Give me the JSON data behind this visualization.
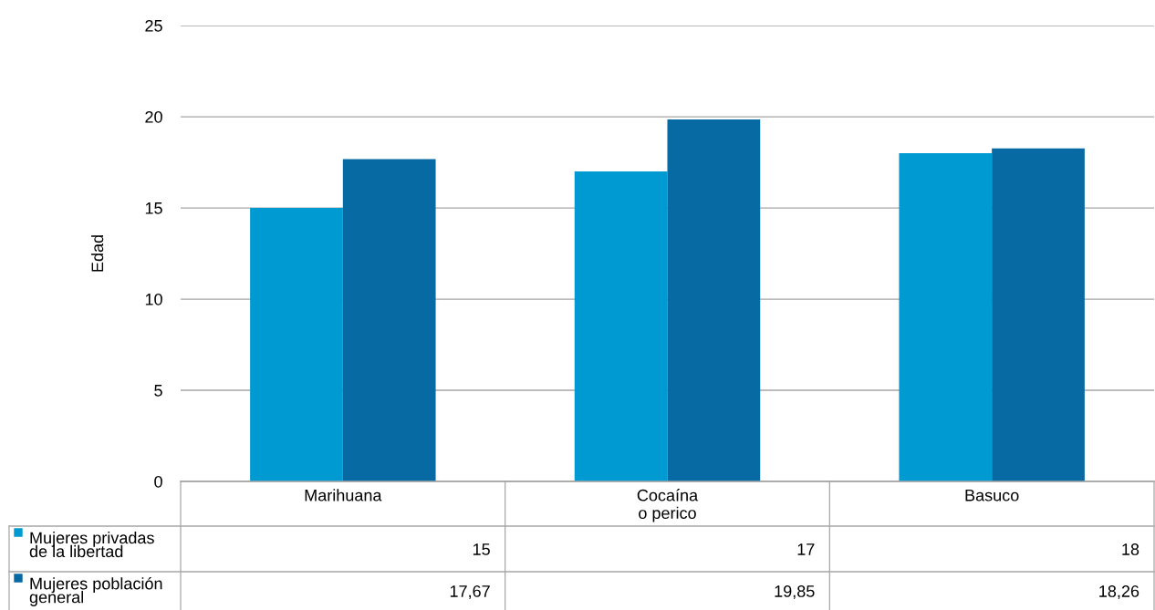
{
  "chart_data": {
    "type": "bar",
    "ylabel": "Edad",
    "categories": [
      "Marihuana",
      "Cocaína\no perico",
      "Basuco"
    ],
    "series": [
      {
        "name": "Mujeres privadas\nde la libertad",
        "color": "#009ad3",
        "values": [
          15,
          17,
          18
        ],
        "value_labels": [
          "15",
          "17",
          "18"
        ]
      },
      {
        "name": "Mujeres población\ngeneral",
        "color": "#086aa3",
        "values": [
          17.67,
          19.85,
          18.26
        ],
        "value_labels": [
          "17,67",
          "19,85",
          "18,26"
        ]
      }
    ],
    "ylim": [
      0,
      25
    ],
    "yticks": [
      0,
      5,
      10,
      15,
      20,
      25
    ],
    "grid": "y",
    "legend": "bottom left"
  }
}
